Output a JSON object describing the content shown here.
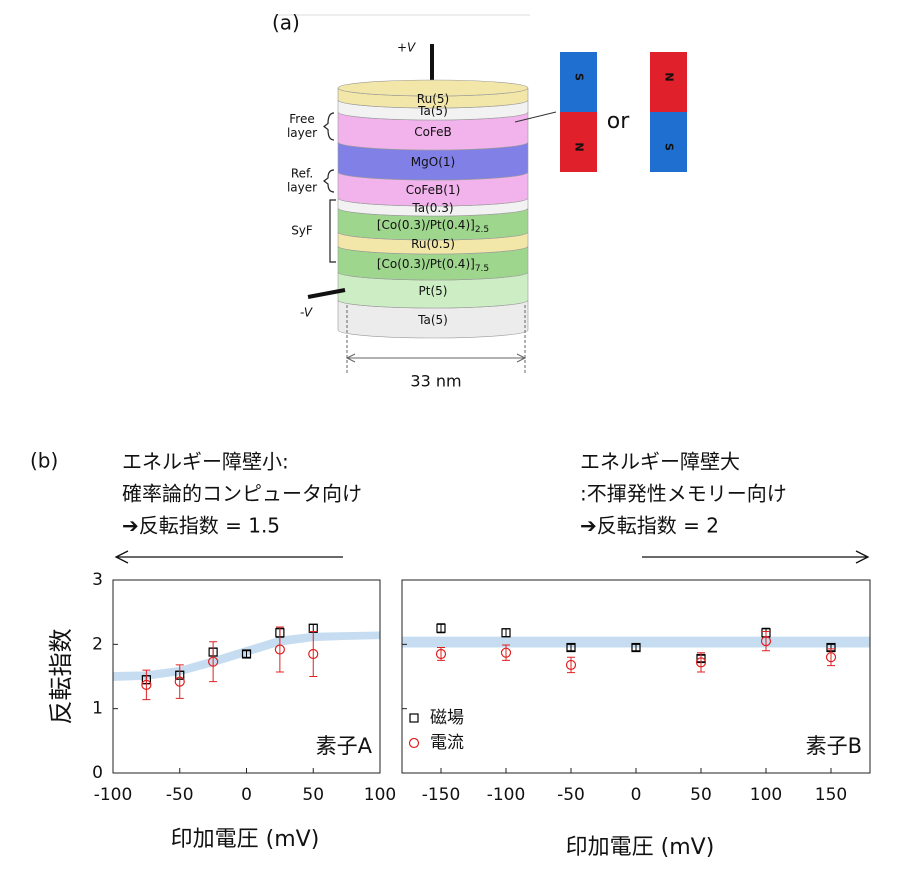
{
  "figure": {
    "label_a": "(a)",
    "label_b": "(b)"
  },
  "diagram": {
    "layers": [
      {
        "label": "Ru(5)",
        "color": "#f2e6a8"
      },
      {
        "label": "Ta(5)",
        "color": "#f2f2f2"
      },
      {
        "label": "CoFeB",
        "color": "#f2b3ec"
      },
      {
        "label": "MgO(1)",
        "color": "#8080e6"
      },
      {
        "label": "CoFeB(1)",
        "color": "#f2b3ec"
      },
      {
        "label": "Ta(0.3)",
        "color": "#f2f2f2"
      },
      {
        "label": "[Co(0.3)/Pt(0.4)]",
        "sub": "2.5",
        "color": "#9fd68e"
      },
      {
        "label": "Ru(0.5)",
        "color": "#f2e6a8"
      },
      {
        "label": "[Co(0.3)/Pt(0.4)]",
        "sub": "7.5",
        "color": "#9fd68e"
      },
      {
        "label": "Pt(5)",
        "color": "#cdeec4"
      },
      {
        "label": "Ta(5)",
        "color": "#ececec"
      }
    ],
    "groups": [
      {
        "lines": [
          "Free",
          "layer"
        ]
      },
      {
        "lines": [
          "Ref.",
          "layer"
        ]
      },
      {
        "lines": [
          "SyF"
        ]
      }
    ],
    "plus_v": "+V",
    "minus_v": "-V",
    "width": "33 nm",
    "or": "or",
    "magnets": [
      {
        "top": "S",
        "bottom": "N"
      },
      {
        "top": "N",
        "bottom": "S"
      }
    ]
  },
  "annotations": {
    "left": [
      "エネルギー障壁小:",
      "確率論的コンピュータ向け",
      "➔反転指数 = 1.5"
    ],
    "right": [
      "エネルギー障壁大",
      ":不揮発性メモリー向け",
      "➔反転指数 = 2"
    ]
  },
  "chart_data": [
    {
      "type": "scatter",
      "xlabel": "印加電圧 (mV)",
      "ylabel": "反転指数",
      "annotation": "素子A",
      "xlim": [
        -100,
        100
      ],
      "xticks": [
        -100,
        -50,
        0,
        50,
        100
      ],
      "ylim": [
        0,
        3
      ],
      "yticks": [
        0,
        1,
        2,
        3
      ],
      "band": {
        "color": "#c6dcf0",
        "x": [
          -100,
          -75,
          -50,
          -25,
          0,
          25,
          50,
          75,
          100
        ],
        "lower": [
          1.43,
          1.45,
          1.52,
          1.66,
          1.82,
          1.98,
          2.05,
          2.07,
          2.08
        ],
        "upper": [
          1.57,
          1.58,
          1.65,
          1.8,
          1.96,
          2.12,
          2.18,
          2.19,
          2.2
        ]
      },
      "series": [
        {
          "color": "#000000",
          "marker": "square",
          "x": [
            -75,
            -50,
            -25,
            0,
            25,
            50
          ],
          "values": [
            1.45,
            1.52,
            1.88,
            1.85,
            2.18,
            2.25
          ],
          "errors": [
            0.06,
            0.06,
            0.06,
            0.05,
            0.07,
            0.06
          ]
        },
        {
          "color": "#e02020",
          "marker": "circle",
          "x": [
            -75,
            -50,
            -25,
            25,
            50
          ],
          "values": [
            1.37,
            1.42,
            1.73,
            1.92,
            1.85
          ],
          "errors": [
            0.23,
            0.26,
            0.31,
            0.35,
            0.35
          ]
        }
      ]
    },
    {
      "type": "scatter",
      "xlabel": "印加電圧 (mV)",
      "annotation": "素子B",
      "xlim": [
        -180,
        180
      ],
      "xticks": [
        -150,
        -100,
        -50,
        0,
        50,
        100,
        150
      ],
      "ylim": [
        0,
        3
      ],
      "yticks": [
        0,
        1,
        2,
        3
      ],
      "show_ytick_labels": false,
      "band": {
        "color": "#c6dcf0",
        "x": [
          -180,
          180
        ],
        "lower": [
          1.95,
          1.95
        ],
        "upper": [
          2.12,
          2.12
        ]
      },
      "series": [
        {
          "name": "磁場",
          "color": "#000000",
          "marker": "square",
          "x": [
            -150,
            -100,
            -50,
            0,
            50,
            100,
            150
          ],
          "values": [
            2.25,
            2.18,
            1.95,
            1.95,
            1.78,
            2.18,
            1.95
          ],
          "errors": [
            0.07,
            0.06,
            0.05,
            0.05,
            0.05,
            0.07,
            0.05
          ]
        },
        {
          "name": "電流",
          "color": "#e02020",
          "marker": "circle",
          "x": [
            -150,
            -100,
            -50,
            50,
            100,
            150
          ],
          "values": [
            1.85,
            1.87,
            1.68,
            1.72,
            2.05,
            1.8
          ],
          "errors": [
            0.1,
            0.12,
            0.12,
            0.15,
            0.15,
            0.13
          ]
        }
      ]
    }
  ]
}
